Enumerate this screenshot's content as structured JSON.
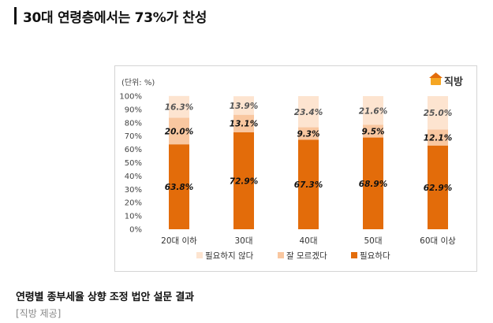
{
  "headline": "30대 연령층에서는 73%가 찬성",
  "chart_data": {
    "type": "bar",
    "stacked": true,
    "unit_label": "(단위: %)",
    "brand": "직방",
    "brand_icon": "house-icon",
    "categories": [
      "20대 이하",
      "30대",
      "40대",
      "50대",
      "60대 이상"
    ],
    "ylim": [
      0,
      100
    ],
    "yticks": [
      "0%",
      "10%",
      "20%",
      "30%",
      "40%",
      "50%",
      "60%",
      "70%",
      "80%",
      "90%",
      "100%"
    ],
    "series": [
      {
        "name": "필요하다",
        "color": "#e36c0a",
        "values": [
          63.8,
          72.9,
          67.3,
          68.9,
          62.9
        ],
        "labels": [
          "63.8%",
          "72.9%",
          "67.3%",
          "68.9%",
          "62.9%"
        ]
      },
      {
        "name": "잘 모르겠다",
        "color": "#f9c7a0",
        "values": [
          20.0,
          13.1,
          9.3,
          9.5,
          12.1
        ],
        "labels": [
          "20.0%",
          "13.1%",
          "9.3%",
          "9.5%",
          "12.1%"
        ]
      },
      {
        "name": "필요하지 않다",
        "color": "#fde4d0",
        "values": [
          16.3,
          13.9,
          23.4,
          21.6,
          25.0
        ],
        "labels": [
          "16.3%",
          "13.9%",
          "23.4%",
          "21.6%",
          "25.0%"
        ]
      }
    ],
    "legend_order": [
      "필요하지 않다",
      "잘 모르겠다",
      "필요하다"
    ],
    "legend_position": "bottom",
    "grid": false
  },
  "caption": "연령별 종부세율 상향 조정 법안 설문 결과",
  "credit": "[직방 제공]"
}
